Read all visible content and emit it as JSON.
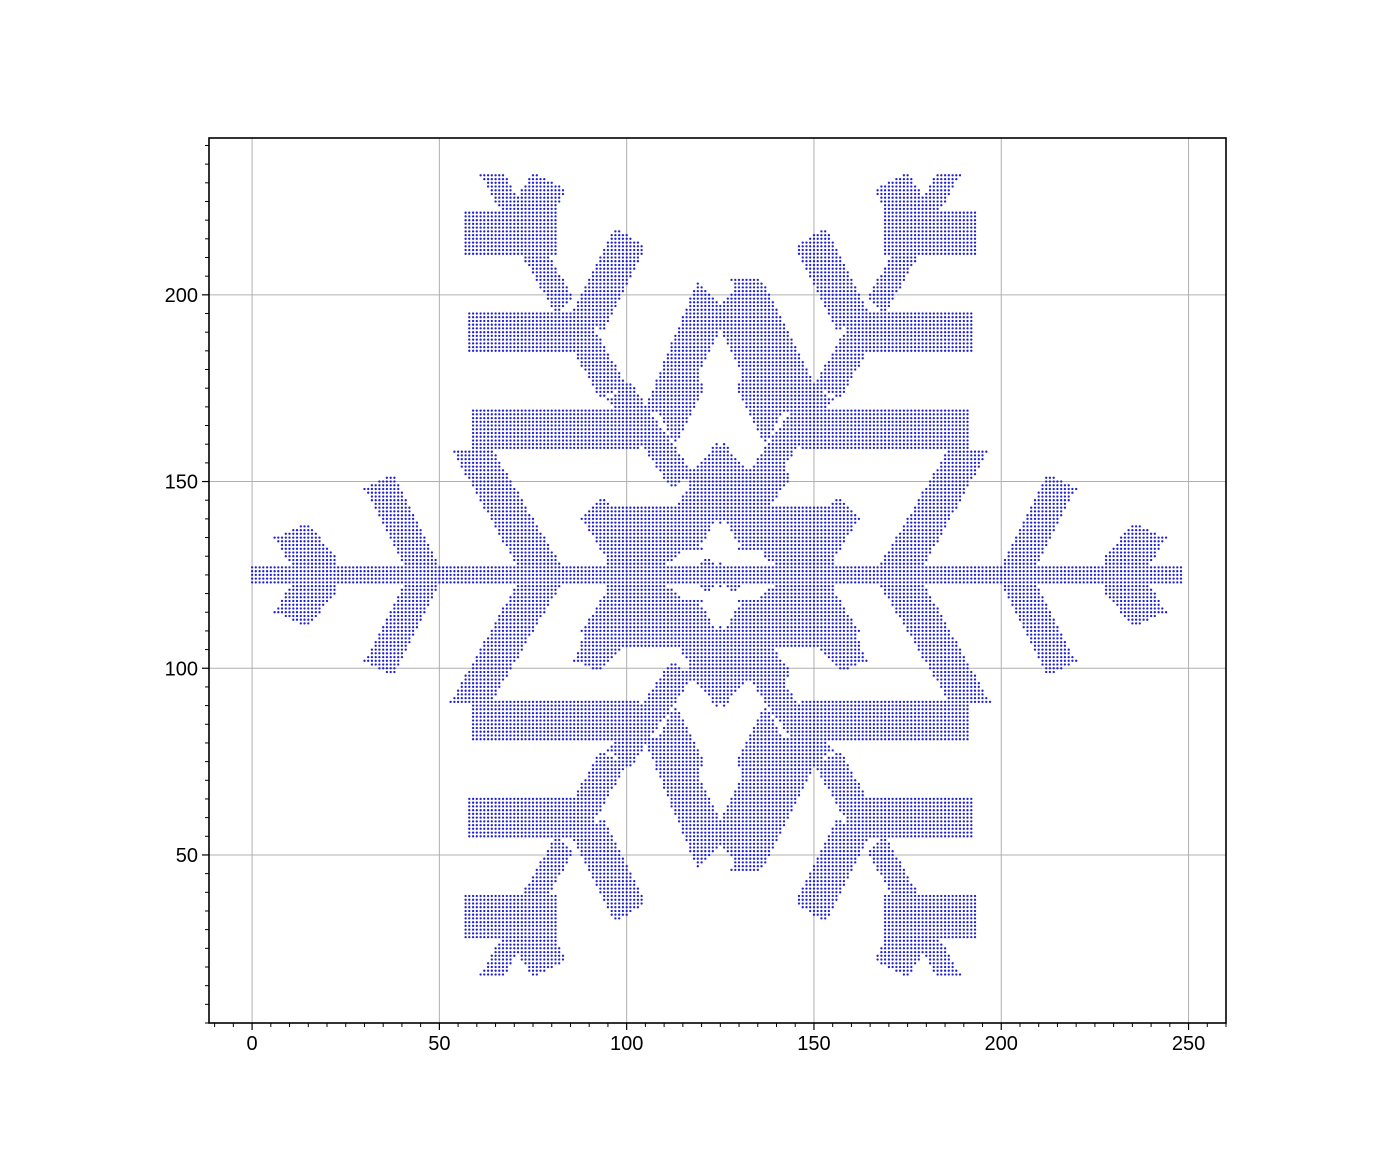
{
  "chart_data": {
    "type": "scatter",
    "title": "",
    "xlabel": "",
    "ylabel": "",
    "xlim": [
      -11.5,
      260
    ],
    "ylim": [
      5,
      242
    ],
    "xticks": [
      0,
      50,
      100,
      150,
      200,
      250
    ],
    "yticks": [
      50,
      100,
      150,
      200
    ],
    "xtick_labels": [
      "0",
      "50",
      "100",
      "150",
      "200",
      "250"
    ],
    "ytick_labels": [
      "50",
      "100",
      "150",
      "200"
    ],
    "grid": true,
    "legend": "none",
    "marker_color": "#1f1fd6",
    "marker": "dot",
    "point_spacing": 1,
    "symmetry": "snowflake mirrored about x=125 and y=125; shapes listed for left half of upper half, others derived",
    "series": [
      {
        "name": "",
        "color": "#1f1fd6",
        "strips": [
          {
            "x": [
              0,
              248
            ],
            "y": [
              124,
              127
            ]
          },
          {
            "x": [
              57,
              81
            ],
            "y": [
              211,
              222
            ]
          },
          {
            "x": [
              58,
              91
            ],
            "y": [
              185,
              195
            ]
          },
          {
            "x": [
              59,
              103
            ],
            "y": [
              159,
              169
            ]
          },
          {
            "x": [
              95,
              155
            ],
            "y": [
              106,
              143
            ]
          }
        ],
        "polygons": [
          [
            [
              6,
              135
            ],
            [
              15,
              139
            ],
            [
              23,
              129
            ],
            [
              23,
              121
            ],
            [
              15,
              111
            ],
            [
              6,
              115
            ],
            [
              12,
              125
            ]
          ],
          [
            [
              30,
              148
            ],
            [
              38,
              152
            ],
            [
              50,
              128
            ],
            [
              50,
              122
            ],
            [
              38,
              98
            ],
            [
              30,
              102
            ],
            [
              42,
              125
            ]
          ],
          [
            [
              53,
              159
            ],
            [
              64,
              159
            ],
            [
              84,
              125
            ],
            [
              64,
              91
            ],
            [
              53,
              91
            ],
            [
              72,
              125
            ]
          ],
          [
            [
              90,
              112
            ],
            [
              98,
              118
            ],
            [
              106,
              113
            ],
            [
              93,
              99
            ],
            [
              86,
              102
            ]
          ],
          [
            [
              94,
              146
            ],
            [
              104,
              128
            ],
            [
              98,
              124
            ],
            [
              88,
              140
            ]
          ],
          [
            [
              113,
              160
            ],
            [
              121,
              175
            ],
            [
              116,
              182
            ],
            [
              109,
              168
            ]
          ],
          [
            [
              61,
              232
            ],
            [
              67,
              233
            ],
            [
              75,
              219
            ],
            [
              70,
              216
            ]
          ],
          [
            [
              68,
              222
            ],
            [
              75,
              233
            ],
            [
              84,
              228
            ],
            [
              78,
              216
            ]
          ],
          [
            [
              70,
              214
            ],
            [
              81,
              195
            ],
            [
              86,
              199
            ],
            [
              75,
              218
            ]
          ],
          [
            [
              86,
              196
            ],
            [
              97,
              218
            ],
            [
              105,
              213
            ],
            [
              94,
              190
            ]
          ],
          [
            [
              83,
              190
            ],
            [
              93,
              172
            ],
            [
              100,
              176
            ],
            [
              89,
              195
            ]
          ],
          [
            [
              95,
              172
            ],
            [
              103,
              159
            ],
            [
              110,
              163
            ],
            [
              101,
              177
            ]
          ],
          [
            [
              105,
              170
            ],
            [
              119,
              204
            ],
            [
              127,
              195
            ],
            [
              113,
              165
            ]
          ],
          [
            [
              104,
              160
            ],
            [
              112,
              148
            ],
            [
              118,
              152
            ],
            [
              110,
              164
            ]
          ],
          [
            [
              116,
              151
            ],
            [
              122,
              143
            ],
            [
              128,
              148
            ],
            [
              120,
              156
            ]
          ],
          [
            [
              113,
              143
            ],
            [
              124,
              161
            ],
            [
              137,
              143
            ]
          ],
          [
            [
              131,
              140
            ],
            [
              138,
              143
            ],
            [
              144,
              151
            ],
            [
              141,
              156
            ],
            [
              134,
              150
            ]
          ],
          [
            [
              127,
              205
            ],
            [
              150,
              160
            ],
            [
              156,
              165
            ],
            [
              136,
              204
            ]
          ]
        ],
        "holes": [
          [
            [
              120,
              133
            ],
            [
              124,
              140
            ],
            [
              128,
              133
            ],
            [
              124,
              127
            ]
          ],
          [
            [
              111,
              128
            ],
            [
              116,
              132
            ],
            [
              123,
              132
            ],
            [
              120,
              128
            ]
          ],
          [
            [
              126,
              128
            ],
            [
              129,
              132
            ],
            [
              136,
              132
            ],
            [
              138,
              128
            ]
          ]
        ]
      }
    ]
  }
}
